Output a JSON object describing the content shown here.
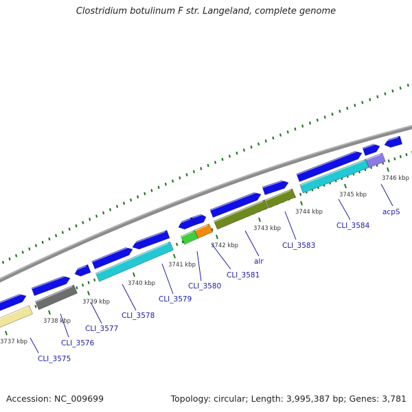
{
  "title": "Clostridium botulinum F str. Langeland, complete genome",
  "footer": {
    "accession": "Accession: NC_009699",
    "summary": "Topology: circular; Length: 3,995,387 bp; Genes: 3,781"
  },
  "colors": {
    "backbone": "#8c8c8c",
    "tick": "#1f7a1f",
    "label": "#1a1aa8",
    "gene_blue": "#1010e6",
    "gene_cyan": "#22c8d2",
    "gene_gray": "#6e6e6e",
    "gene_olive": "#6e8a1e",
    "gene_green": "#3ecf3e",
    "gene_orange": "#f08a10",
    "gene_yellow": "#f0e69a",
    "gene_lavender": "#8a7ae6"
  },
  "scale_ticks": [
    {
      "kbp": 3737,
      "label": "3737 kbp"
    },
    {
      "kbp": 3738,
      "label": "3738 kbp"
    },
    {
      "kbp": 3739,
      "label": "3739 kbp"
    },
    {
      "kbp": 3740,
      "label": "3740 kbp"
    },
    {
      "kbp": 3741,
      "label": "3741 kbp"
    },
    {
      "kbp": 3742,
      "label": "3742 kbp"
    },
    {
      "kbp": 3743,
      "label": "3743 kbp"
    },
    {
      "kbp": 3744,
      "label": "3744 kbp"
    },
    {
      "kbp": 3745,
      "label": "3745 kbp"
    },
    {
      "kbp": 3746,
      "label": "3746 kbp"
    }
  ],
  "gene_labels": [
    {
      "name": "CLI_3575"
    },
    {
      "name": "CLI_3576"
    },
    {
      "name": "CLI_3577"
    },
    {
      "name": "CLI_3578"
    },
    {
      "name": "CLI_3579"
    },
    {
      "name": "CLI_3580"
    },
    {
      "name": "CLI_3581"
    },
    {
      "name": "alr"
    },
    {
      "name": "CLI_3583"
    },
    {
      "name": "CLI_3584"
    },
    {
      "name": "acpS"
    }
  ]
}
